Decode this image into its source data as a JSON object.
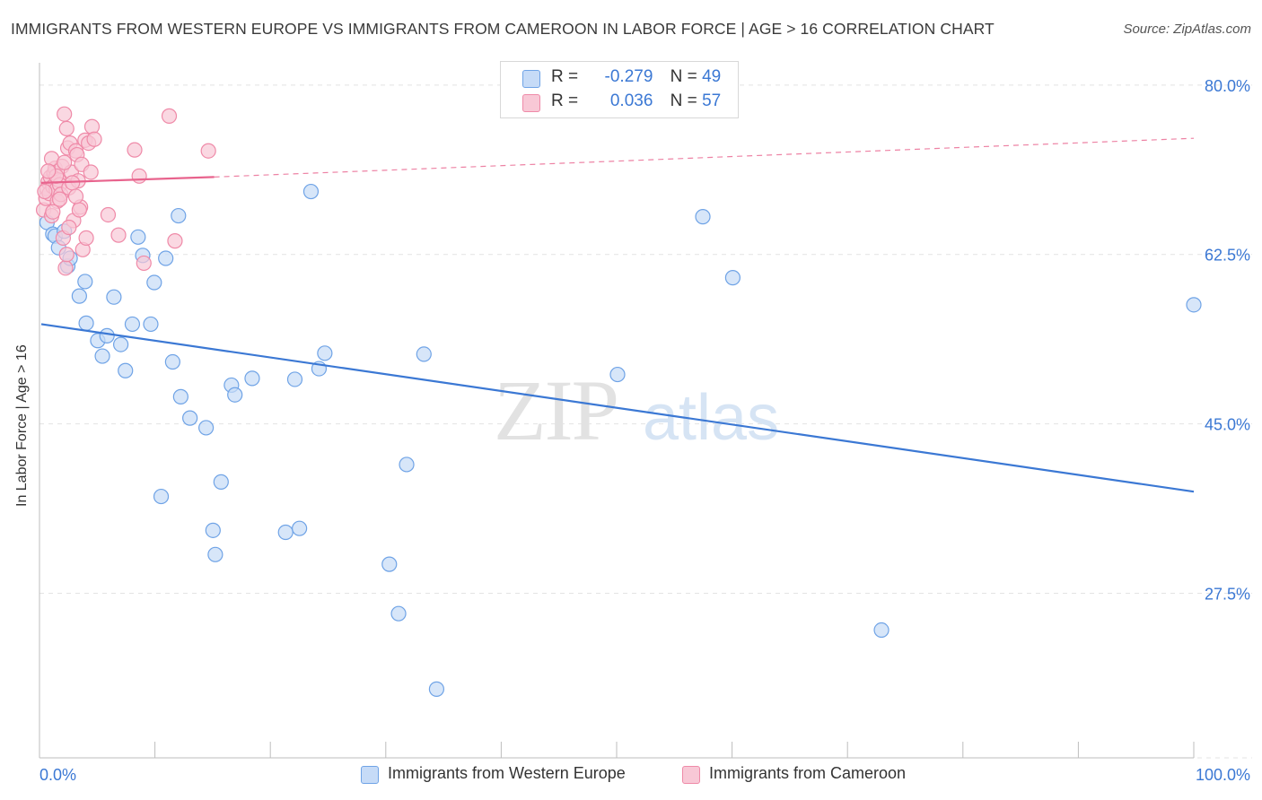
{
  "title": "IMMIGRANTS FROM WESTERN EUROPE VS IMMIGRANTS FROM CAMEROON IN LABOR FORCE | AGE > 16 CORRELATION CHART",
  "source": "Source: ZipAtlas.com",
  "watermark": {
    "zip": "ZIP",
    "atlas": "atlas"
  },
  "legend": {
    "rows": [
      {
        "r_label": "R =",
        "r_value": "-0.279",
        "n_label": "N =",
        "n_value": "49",
        "color": "#6fa3e6",
        "fill": "#c6dbf7"
      },
      {
        "r_label": "R =",
        "r_value": "0.036",
        "n_label": "N =",
        "n_value": "57",
        "color": "#ef8aa8",
        "fill": "#f8c8d6"
      }
    ]
  },
  "bottom_legend": {
    "items": [
      {
        "label": "Immigrants from Western Europe"
      },
      {
        "label": "Immigrants from Cameroon"
      }
    ]
  },
  "chart_data": {
    "type": "scatter",
    "ylabel": "In Labor Force | Age > 16",
    "x_tick_labels": [
      "0.0%",
      "100.0%"
    ],
    "y_tick_labels": [
      "80.0%",
      "62.5%",
      "45.0%",
      "27.5%"
    ],
    "y_tick_values": [
      80.0,
      62.5,
      45.0,
      27.5
    ],
    "xlim": [
      0,
      100
    ],
    "ylim": [
      10.5,
      82.3
    ],
    "grid": true,
    "series": [
      {
        "name": "Immigrants from Western Europe",
        "color": "#3b78d4",
        "fill": "#c6dbf7",
        "stroke": "#6fa3e6",
        "trend": {
          "x": [
            0,
            100
          ],
          "y": [
            55.3,
            38.0
          ]
        },
        "points": [
          [
            0.5,
            65.8
          ],
          [
            1.0,
            64.6
          ],
          [
            1.2,
            64.4
          ],
          [
            1.5,
            63.2
          ],
          [
            2.0,
            64.9
          ],
          [
            2.3,
            61.3
          ],
          [
            2.5,
            62.1
          ],
          [
            3.3,
            58.2
          ],
          [
            3.8,
            59.7
          ],
          [
            3.9,
            55.4
          ],
          [
            4.9,
            53.6
          ],
          [
            5.3,
            52.0
          ],
          [
            5.7,
            54.1
          ],
          [
            6.3,
            58.1
          ],
          [
            6.9,
            53.2
          ],
          [
            7.3,
            50.5
          ],
          [
            7.9,
            55.3
          ],
          [
            8.4,
            64.3
          ],
          [
            8.8,
            62.4
          ],
          [
            9.5,
            55.3
          ],
          [
            9.8,
            59.6
          ],
          [
            10.4,
            37.5
          ],
          [
            10.8,
            62.1
          ],
          [
            11.4,
            51.4
          ],
          [
            11.9,
            66.5
          ],
          [
            12.1,
            47.8
          ],
          [
            12.9,
            45.6
          ],
          [
            14.3,
            44.6
          ],
          [
            14.9,
            34.0
          ],
          [
            15.1,
            31.5
          ],
          [
            15.6,
            39.0
          ],
          [
            16.5,
            49.0
          ],
          [
            16.8,
            48.0
          ],
          [
            18.3,
            49.7
          ],
          [
            21.2,
            33.8
          ],
          [
            22.0,
            49.6
          ],
          [
            22.4,
            34.2
          ],
          [
            23.4,
            69.0
          ],
          [
            24.1,
            50.7
          ],
          [
            24.6,
            52.3
          ],
          [
            30.2,
            30.5
          ],
          [
            31.0,
            25.4
          ],
          [
            31.7,
            40.8
          ],
          [
            33.2,
            52.2
          ],
          [
            34.3,
            17.6
          ],
          [
            50.0,
            50.1
          ],
          [
            57.4,
            66.4
          ],
          [
            60.0,
            60.1
          ],
          [
            72.9,
            23.7
          ],
          [
            100.0,
            57.3
          ]
        ]
      },
      {
        "name": "Immigrants from Cameroon",
        "color": "#e8638d",
        "fill": "#f8c8d6",
        "stroke": "#ef8aa8",
        "trend": {
          "x": [
            0,
            15
          ],
          "y": [
            69.9,
            70.5
          ]
        },
        "trend_ext": {
          "x": [
            15,
            100
          ],
          "y": [
            70.5,
            74.5
          ]
        },
        "points": [
          [
            0.2,
            67.1
          ],
          [
            0.4,
            68.3
          ],
          [
            0.5,
            69.3
          ],
          [
            0.6,
            70.0
          ],
          [
            0.7,
            68.8
          ],
          [
            0.8,
            70.5
          ],
          [
            0.9,
            66.5
          ],
          [
            1.0,
            69.5
          ],
          [
            1.1,
            70.9
          ],
          [
            1.2,
            71.4
          ],
          [
            1.3,
            69.2
          ],
          [
            1.4,
            68.0
          ],
          [
            1.5,
            70.2
          ],
          [
            1.6,
            69.7
          ],
          [
            1.7,
            68.7
          ],
          [
            1.8,
            71.6
          ],
          [
            1.9,
            64.2
          ],
          [
            2.0,
            77.0
          ],
          [
            2.1,
            61.1
          ],
          [
            2.2,
            75.5
          ],
          [
            2.3,
            73.5
          ],
          [
            2.4,
            69.4
          ],
          [
            2.5,
            74.0
          ],
          [
            2.6,
            71.0
          ],
          [
            2.8,
            66.0
          ],
          [
            3.0,
            73.2
          ],
          [
            3.1,
            72.8
          ],
          [
            3.2,
            70.1
          ],
          [
            3.4,
            67.4
          ],
          [
            3.5,
            71.8
          ],
          [
            3.6,
            63.0
          ],
          [
            3.8,
            74.3
          ],
          [
            3.9,
            64.2
          ],
          [
            4.1,
            74.0
          ],
          [
            4.3,
            71.0
          ],
          [
            4.4,
            75.7
          ],
          [
            4.6,
            74.4
          ],
          [
            5.8,
            66.6
          ],
          [
            6.7,
            64.5
          ],
          [
            8.1,
            73.3
          ],
          [
            8.5,
            70.6
          ],
          [
            8.9,
            61.6
          ],
          [
            11.1,
            76.8
          ],
          [
            11.6,
            63.9
          ],
          [
            14.5,
            73.2
          ],
          [
            0.3,
            69.0
          ],
          [
            0.9,
            72.4
          ],
          [
            1.6,
            68.2
          ],
          [
            2.2,
            62.5
          ],
          [
            2.7,
            69.9
          ],
          [
            3.3,
            67.1
          ],
          [
            1.3,
            70.6
          ],
          [
            0.6,
            71.1
          ],
          [
            1.0,
            66.9
          ],
          [
            2.0,
            72.0
          ],
          [
            3.0,
            68.5
          ],
          [
            2.4,
            65.3
          ]
        ]
      }
    ]
  }
}
